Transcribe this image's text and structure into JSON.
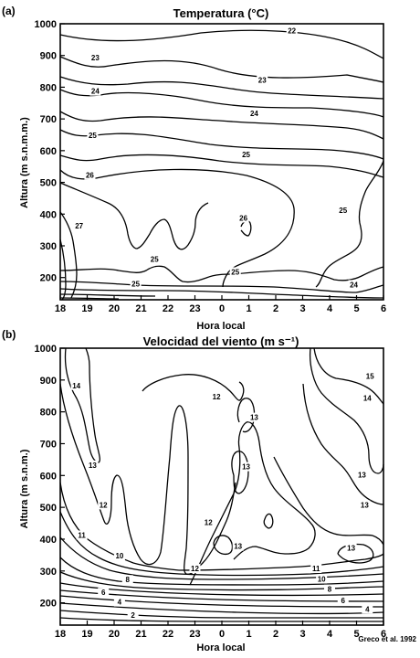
{
  "credit": "Greco et al. 1992",
  "chart_data": [
    {
      "type": "contour",
      "panel_label": "(a)",
      "title": "Temperatura (°C)",
      "xlabel": "Hora local",
      "ylabel": "Altura (m s.n.m.m.)",
      "x_ticks": [
        "18",
        "19",
        "20",
        "21",
        "22",
        "23",
        "0",
        "1",
        "2",
        "3",
        "4",
        "5",
        "6"
      ],
      "y_ticks": [
        200,
        300,
        400,
        500,
        600,
        700,
        800,
        900,
        1000
      ],
      "ylim": [
        130,
        1000
      ],
      "contour_labels": [
        {
          "text": "22",
          "hour": 8.6,
          "alt": 975
        },
        {
          "text": "23",
          "hour": 1.3,
          "alt": 890
        },
        {
          "text": "23",
          "hour": 7.5,
          "alt": 820
        },
        {
          "text": "24",
          "hour": 1.3,
          "alt": 785
        },
        {
          "text": "24",
          "hour": 7.2,
          "alt": 715
        },
        {
          "text": "25",
          "hour": 1.2,
          "alt": 645
        },
        {
          "text": "25",
          "hour": 6.9,
          "alt": 585
        },
        {
          "text": "26",
          "hour": 1.1,
          "alt": 520
        },
        {
          "text": "26",
          "hour": 6.8,
          "alt": 385
        },
        {
          "text": "27",
          "hour": 0.7,
          "alt": 360
        },
        {
          "text": "25",
          "hour": 10.5,
          "alt": 410
        },
        {
          "text": "25",
          "hour": 3.5,
          "alt": 255
        },
        {
          "text": "25",
          "hour": 6.5,
          "alt": 215
        },
        {
          "text": "25",
          "hour": 2.8,
          "alt": 178
        },
        {
          "text": "24",
          "hour": 10.9,
          "alt": 175
        }
      ]
    },
    {
      "type": "contour",
      "panel_label": "(b)",
      "title": "Velocidad del viento (m s⁻¹)",
      "xlabel": "Hora local",
      "ylabel": "Altura (m s.n.m.)",
      "x_ticks": [
        "18",
        "19",
        "20",
        "21",
        "22",
        "23",
        "0",
        "1",
        "2",
        "3",
        "4",
        "5",
        "6"
      ],
      "y_ticks": [
        200,
        300,
        400,
        500,
        600,
        700,
        800,
        900,
        1000
      ],
      "ylim": [
        130,
        1000
      ],
      "contour_labels": [
        {
          "text": "15",
          "hour": 11.5,
          "alt": 910
        },
        {
          "text": "14",
          "hour": 0.6,
          "alt": 880
        },
        {
          "text": "14",
          "hour": 11.4,
          "alt": 840
        },
        {
          "text": "12",
          "hour": 5.8,
          "alt": 845
        },
        {
          "text": "13",
          "hour": 7.2,
          "alt": 780
        },
        {
          "text": "13",
          "hour": 1.2,
          "alt": 630
        },
        {
          "text": "13",
          "hour": 6.9,
          "alt": 625
        },
        {
          "text": "13",
          "hour": 11.2,
          "alt": 600
        },
        {
          "text": "12",
          "hour": 1.6,
          "alt": 505
        },
        {
          "text": "13",
          "hour": 11.3,
          "alt": 505
        },
        {
          "text": "12",
          "hour": 5.5,
          "alt": 450
        },
        {
          "text": "11",
          "hour": 0.8,
          "alt": 410
        },
        {
          "text": "13",
          "hour": 6.6,
          "alt": 375
        },
        {
          "text": "13",
          "hour": 10.8,
          "alt": 370
        },
        {
          "text": "10",
          "hour": 2.2,
          "alt": 345
        },
        {
          "text": "12",
          "hour": 5.0,
          "alt": 305
        },
        {
          "text": "11",
          "hour": 9.5,
          "alt": 305
        },
        {
          "text": "10",
          "hour": 9.7,
          "alt": 272
        },
        {
          "text": "8",
          "hour": 2.5,
          "alt": 270
        },
        {
          "text": "8",
          "hour": 10.0,
          "alt": 240
        },
        {
          "text": "6",
          "hour": 1.6,
          "alt": 230
        },
        {
          "text": "6",
          "hour": 10.5,
          "alt": 205
        },
        {
          "text": "4",
          "hour": 2.2,
          "alt": 200
        },
        {
          "text": "4",
          "hour": 11.4,
          "alt": 178
        },
        {
          "text": "2",
          "hour": 2.7,
          "alt": 158
        }
      ]
    }
  ]
}
